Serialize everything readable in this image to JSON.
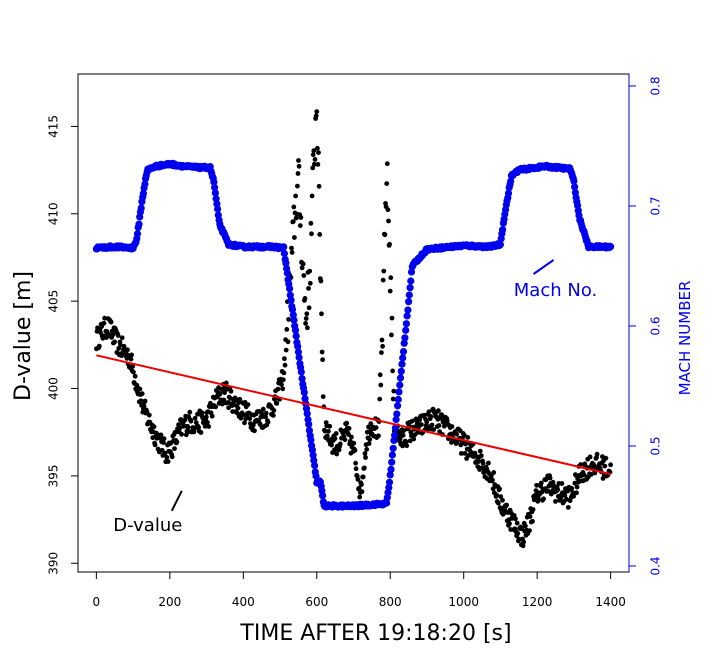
{
  "chart_data": {
    "type": "scatter",
    "xlabel": "TIME AFTER 19:18:20 [s]",
    "ylabel": "D-value [m]",
    "y2label": "MACH NUMBER",
    "xlim": [
      -50,
      1450
    ],
    "ylim": [
      389.5,
      418
    ],
    "y2lim": [
      0.395,
      0.81
    ],
    "xticks": [
      0,
      200,
      400,
      600,
      800,
      1000,
      1200,
      1400
    ],
    "yticks": [
      390,
      395,
      400,
      405,
      410,
      415
    ],
    "y2ticks": [
      0.4,
      0.5,
      0.6,
      0.7,
      0.8
    ],
    "grid": false,
    "colors": {
      "dvalue": "#000000",
      "mach": "#0000ee",
      "trend": "#ee0000"
    },
    "annotations": [
      {
        "text": "D-value",
        "x": 140,
        "y": 392.2,
        "color": "#000000"
      },
      {
        "text": "Mach No.",
        "x": 1250,
        "y": 0.63,
        "color": "#0000ee"
      }
    ],
    "trend_line": {
      "x": [
        0,
        1400
      ],
      "y": [
        401.9,
        395.1
      ]
    },
    "series": [
      {
        "name": "D-value",
        "axis": "left",
        "keypoints": [
          [
            0,
            402.8
          ],
          [
            30,
            403.6
          ],
          [
            60,
            402.5
          ],
          [
            90,
            401.8
          ],
          [
            110,
            400.3
          ],
          [
            130,
            398.8
          ],
          [
            150,
            397.8
          ],
          [
            170,
            397.0
          ],
          [
            190,
            396.3
          ],
          [
            210,
            396.8
          ],
          [
            230,
            397.7
          ],
          [
            250,
            398.1
          ],
          [
            270,
            398.0
          ],
          [
            300,
            398.2
          ],
          [
            330,
            399.5
          ],
          [
            350,
            399.8
          ],
          [
            370,
            399.3
          ],
          [
            400,
            398.7
          ],
          [
            430,
            398.2
          ],
          [
            460,
            398.4
          ],
          [
            490,
            399.3
          ],
          [
            510,
            400.8
          ],
          [
            525,
            405.0
          ],
          [
            540,
            410.0
          ],
          [
            550,
            412.0
          ],
          [
            560,
            408.0
          ],
          [
            570,
            404.0
          ],
          [
            580,
            406.0
          ],
          [
            590,
            412.0
          ],
          [
            600,
            416.5
          ],
          [
            610,
            407.0
          ],
          [
            620,
            398.0
          ],
          [
            640,
            397.0
          ],
          [
            660,
            396.8
          ],
          [
            680,
            397.5
          ],
          [
            700,
            396.5
          ],
          [
            720,
            394.0
          ],
          [
            735,
            397.0
          ],
          [
            750,
            398.0
          ],
          [
            770,
            397.5
          ],
          [
            780,
            404.0
          ],
          [
            790,
            412.5
          ],
          [
            800,
            407.0
          ],
          [
            810,
            398.0
          ],
          [
            830,
            397.0
          ],
          [
            850,
            397.5
          ],
          [
            880,
            397.8
          ],
          [
            920,
            398.3
          ],
          [
            960,
            397.6
          ],
          [
            1000,
            396.8
          ],
          [
            1040,
            396.0
          ],
          [
            1070,
            395.3
          ],
          [
            1100,
            393.5
          ],
          [
            1130,
            392.5
          ],
          [
            1160,
            391.5
          ],
          [
            1180,
            392.5
          ],
          [
            1200,
            394.0
          ],
          [
            1230,
            394.5
          ],
          [
            1260,
            394.0
          ],
          [
            1290,
            393.8
          ],
          [
            1320,
            395.2
          ],
          [
            1350,
            395.7
          ],
          [
            1380,
            395.5
          ],
          [
            1400,
            395.3
          ]
        ]
      },
      {
        "name": "Mach No.",
        "axis": "right",
        "keypoints": [
          [
            0,
            0.665
          ],
          [
            50,
            0.666
          ],
          [
            100,
            0.665
          ],
          [
            110,
            0.672
          ],
          [
            120,
            0.695
          ],
          [
            135,
            0.725
          ],
          [
            140,
            0.73
          ],
          [
            160,
            0.733
          ],
          [
            200,
            0.735
          ],
          [
            240,
            0.733
          ],
          [
            280,
            0.732
          ],
          [
            310,
            0.732
          ],
          [
            320,
            0.72
          ],
          [
            335,
            0.685
          ],
          [
            360,
            0.668
          ],
          [
            400,
            0.666
          ],
          [
            450,
            0.666
          ],
          [
            480,
            0.666
          ],
          [
            510,
            0.665
          ],
          [
            600,
            0.47
          ],
          [
            610,
            0.47
          ],
          [
            620,
            0.45
          ],
          [
            700,
            0.45
          ],
          [
            790,
            0.452
          ],
          [
            800,
            0.475
          ],
          [
            850,
            0.62
          ],
          [
            860,
            0.65
          ],
          [
            900,
            0.664
          ],
          [
            1000,
            0.667
          ],
          [
            1070,
            0.666
          ],
          [
            1100,
            0.668
          ],
          [
            1110,
            0.69
          ],
          [
            1130,
            0.725
          ],
          [
            1150,
            0.73
          ],
          [
            1220,
            0.733
          ],
          [
            1290,
            0.731
          ],
          [
            1300,
            0.72
          ],
          [
            1315,
            0.69
          ],
          [
            1340,
            0.666
          ],
          [
            1400,
            0.666
          ]
        ]
      }
    ]
  }
}
